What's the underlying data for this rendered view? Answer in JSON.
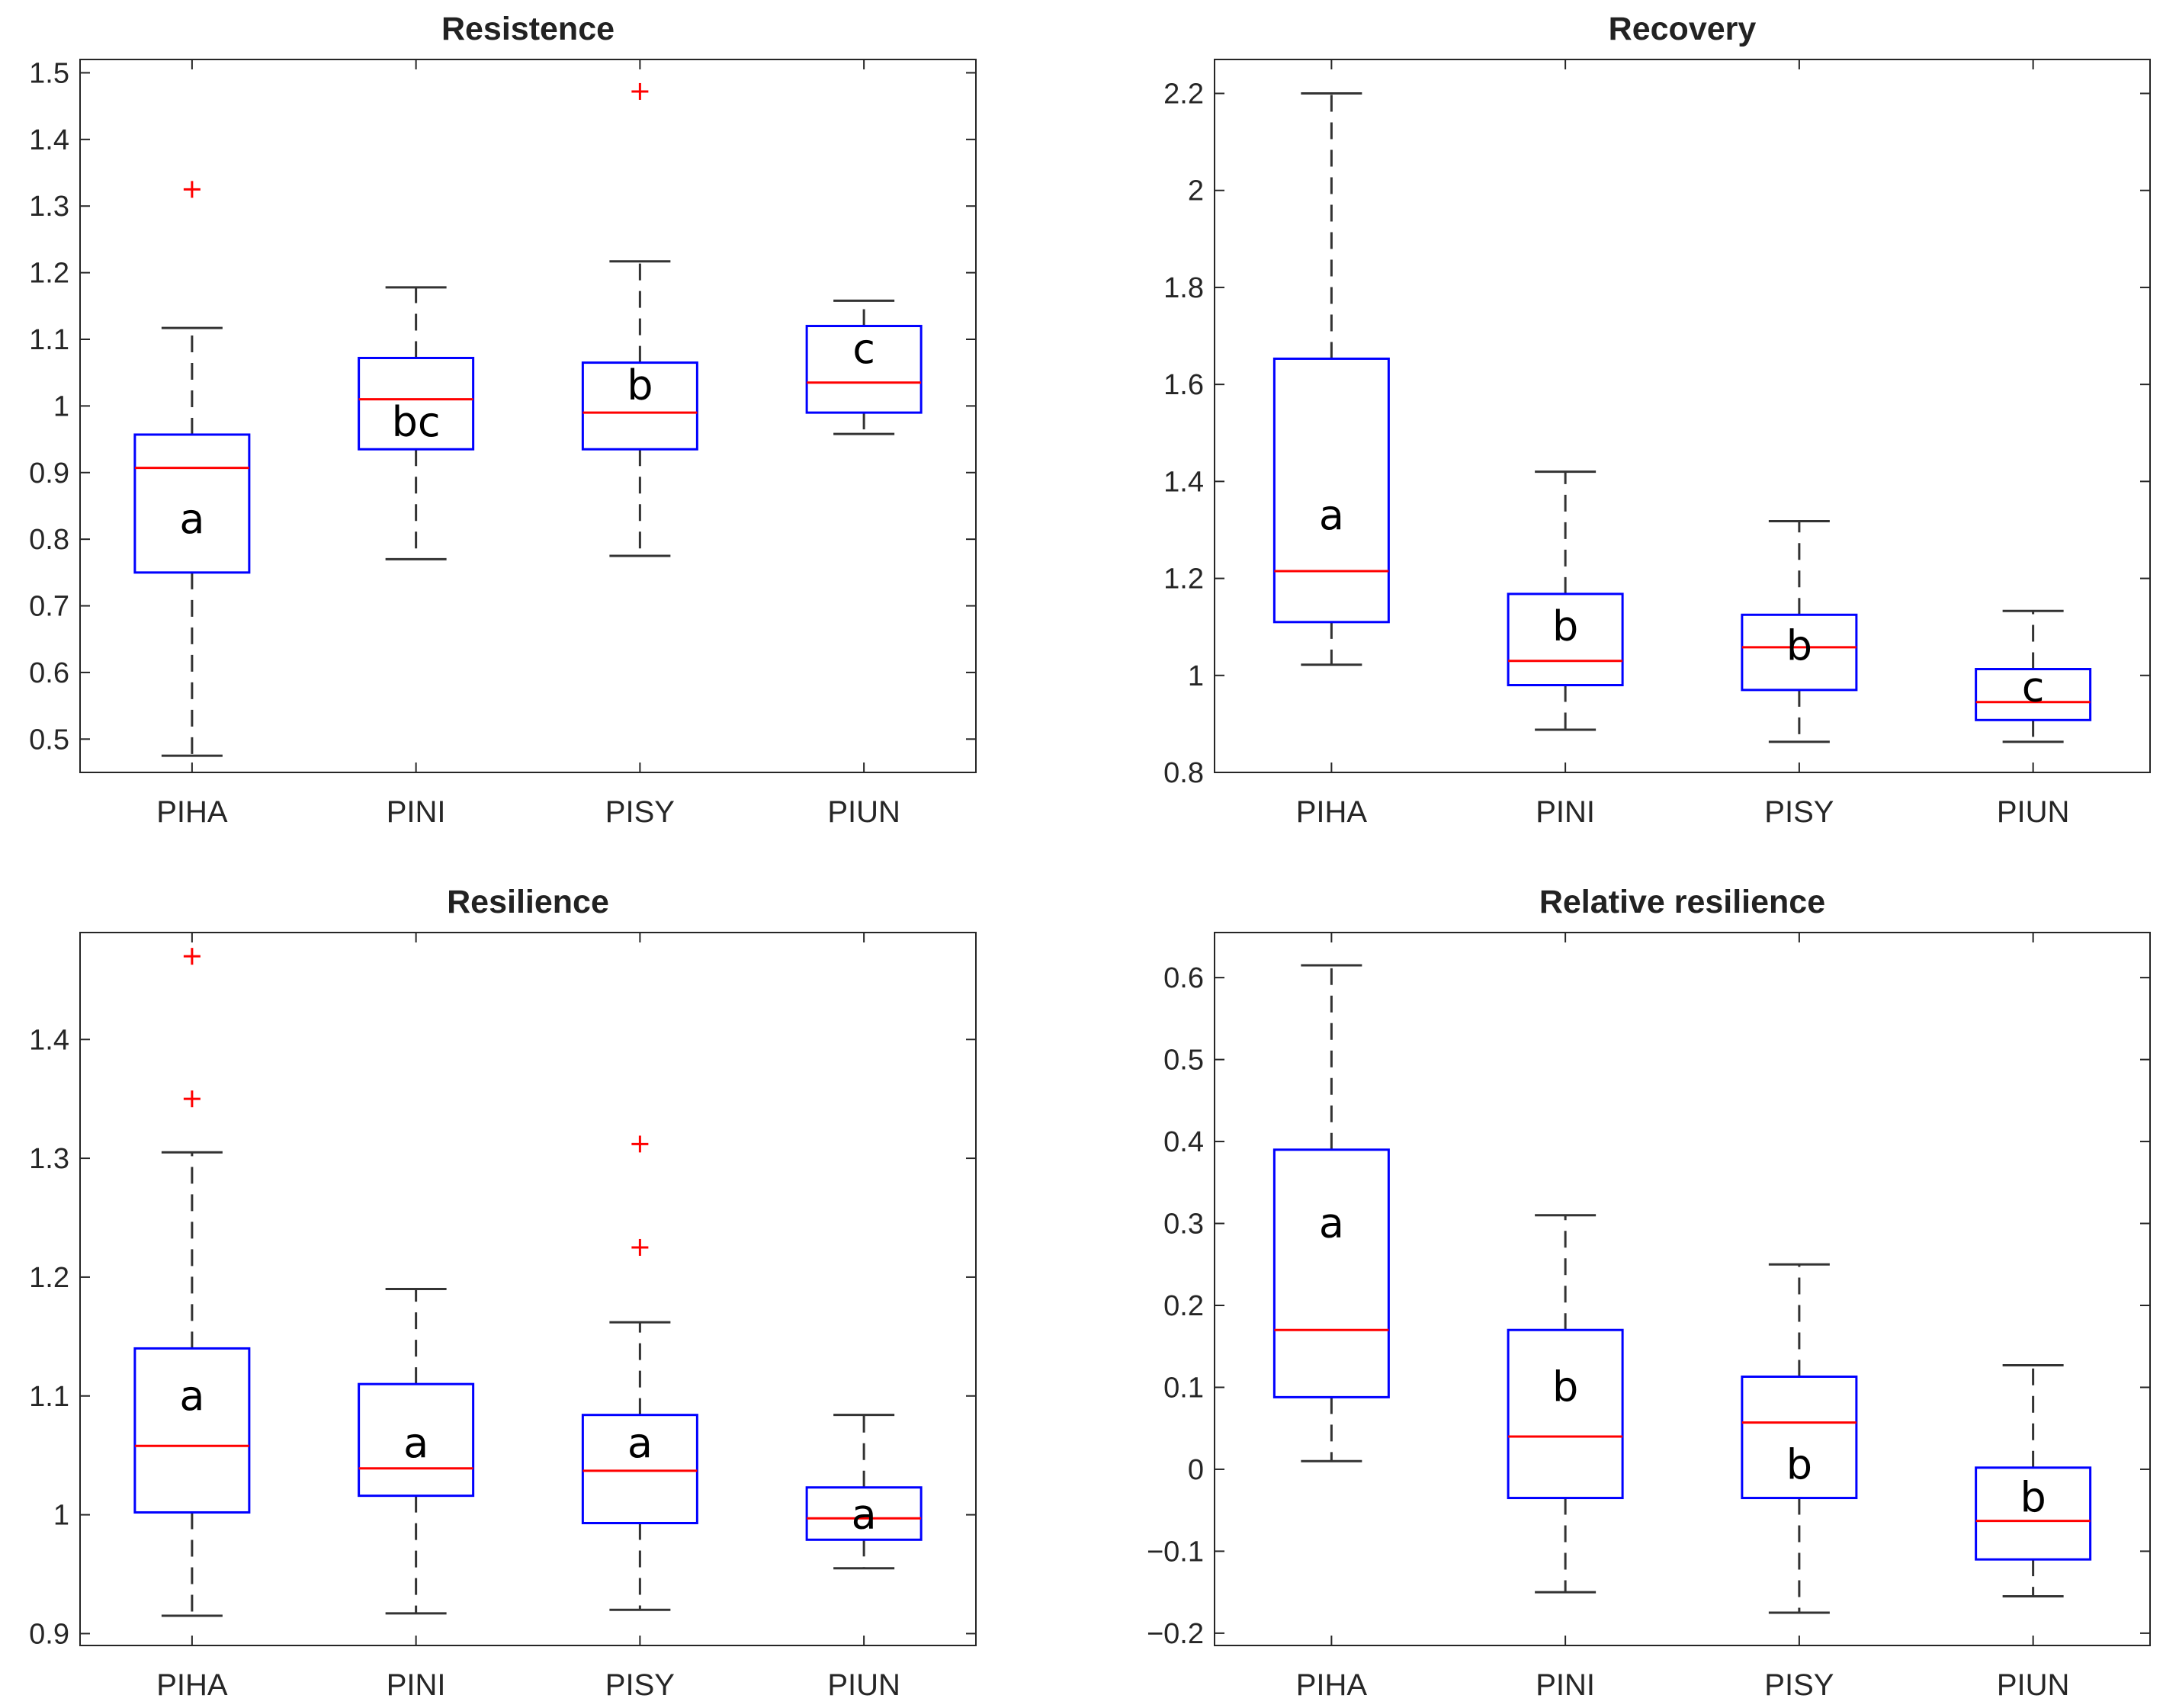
{
  "chart_data": [
    {
      "type": "box",
      "title": "Resistence",
      "categories": [
        "PIHA",
        "PINI",
        "PISY",
        "PIUN"
      ],
      "ylim": [
        0.45,
        1.52
      ],
      "yticks": [
        0.5,
        0.6,
        0.7,
        0.8,
        0.9,
        1,
        1.1,
        1.2,
        1.3,
        1.4,
        1.5
      ],
      "ytick_labels": [
        "0.5",
        "0.6",
        "0.7",
        "0.8",
        "0.9",
        "1",
        "1.1",
        "1.2",
        "1.3",
        "1.4",
        "1.5"
      ],
      "series": [
        {
          "name": "PIHA",
          "whisker_low": 0.475,
          "q1": 0.75,
          "median": 0.907,
          "q3": 0.957,
          "whisker_high": 1.117,
          "outliers": [
            1.325
          ],
          "letter": "a",
          "letter_y": 0.83
        },
        {
          "name": "PINI",
          "whisker_low": 0.77,
          "q1": 0.935,
          "median": 1.01,
          "q3": 1.072,
          "whisker_high": 1.178,
          "outliers": [],
          "letter": "bc",
          "letter_y": 0.975
        },
        {
          "name": "PISY",
          "whisker_low": 0.775,
          "q1": 0.935,
          "median": 0.99,
          "q3": 1.065,
          "whisker_high": 1.217,
          "outliers": [
            1.472
          ],
          "letter": "b",
          "letter_y": 1.03
        },
        {
          "name": "PIUN",
          "whisker_low": 0.958,
          "q1": 0.99,
          "median": 1.035,
          "q3": 1.12,
          "whisker_high": 1.158,
          "outliers": [],
          "letter": "c",
          "letter_y": 1.085
        }
      ]
    },
    {
      "type": "box",
      "title": "Recovery",
      "categories": [
        "PIHA",
        "PINI",
        "PISY",
        "PIUN"
      ],
      "ylim": [
        0.8,
        2.27
      ],
      "yticks": [
        0.8,
        1,
        1.2,
        1.4,
        1.6,
        1.8,
        2,
        2.2
      ],
      "ytick_labels": [
        "0.8",
        "1",
        "1.2",
        "1.4",
        "1.6",
        "1.8",
        "2",
        "2.2"
      ],
      "series": [
        {
          "name": "PIHA",
          "whisker_low": 1.022,
          "q1": 1.11,
          "median": 1.215,
          "q3": 1.653,
          "whisker_high": 2.2,
          "outliers": [],
          "letter": "a",
          "letter_y": 1.33
        },
        {
          "name": "PINI",
          "whisker_low": 0.888,
          "q1": 0.98,
          "median": 1.03,
          "q3": 1.168,
          "whisker_high": 1.42,
          "outliers": [],
          "letter": "b",
          "letter_y": 1.1
        },
        {
          "name": "PISY",
          "whisker_low": 0.863,
          "q1": 0.97,
          "median": 1.058,
          "q3": 1.125,
          "whisker_high": 1.318,
          "outliers": [],
          "letter": "b",
          "letter_y": 1.06
        },
        {
          "name": "PIUN",
          "whisker_low": 0.863,
          "q1": 0.908,
          "median": 0.945,
          "q3": 1.013,
          "whisker_high": 1.133,
          "outliers": [],
          "letter": "c",
          "letter_y": 0.975
        }
      ]
    },
    {
      "type": "box",
      "title": "Resilience",
      "categories": [
        "PIHA",
        "PINI",
        "PISY",
        "PIUN"
      ],
      "ylim": [
        0.89,
        1.49
      ],
      "yticks": [
        0.9,
        1,
        1.1,
        1.2,
        1.3,
        1.4
      ],
      "ytick_labels": [
        "0.9",
        "1",
        "1.1",
        "1.2",
        "1.3",
        "1.4"
      ],
      "series": [
        {
          "name": "PIHA",
          "whisker_low": 0.915,
          "q1": 1.002,
          "median": 1.058,
          "q3": 1.14,
          "whisker_high": 1.305,
          "outliers": [
            1.35,
            1.47
          ],
          "letter": "a",
          "letter_y": 1.1
        },
        {
          "name": "PINI",
          "whisker_low": 0.917,
          "q1": 1.016,
          "median": 1.039,
          "q3": 1.11,
          "whisker_high": 1.19,
          "outliers": [],
          "letter": "a",
          "letter_y": 1.06
        },
        {
          "name": "PISY",
          "whisker_low": 0.92,
          "q1": 0.993,
          "median": 1.037,
          "q3": 1.084,
          "whisker_high": 1.162,
          "outliers": [
            1.225,
            1.312
          ],
          "letter": "a",
          "letter_y": 1.06
        },
        {
          "name": "PIUN",
          "whisker_low": 0.955,
          "q1": 0.979,
          "median": 0.997,
          "q3": 1.023,
          "whisker_high": 1.084,
          "outliers": [],
          "letter": "a",
          "letter_y": 1.0
        }
      ]
    },
    {
      "type": "box",
      "title": "Relative resilience",
      "categories": [
        "PIHA",
        "PINI",
        "PISY",
        "PIUN"
      ],
      "ylim": [
        -0.215,
        0.655
      ],
      "yticks": [
        -0.2,
        -0.1,
        0,
        0.1,
        0.2,
        0.3,
        0.4,
        0.5,
        0.6
      ],
      "ytick_labels": [
        "−0.2",
        "−0.1",
        "0",
        "0.1",
        "0.2",
        "0.3",
        "0.4",
        "0.5",
        "0.6"
      ],
      "series": [
        {
          "name": "PIHA",
          "whisker_low": 0.01,
          "q1": 0.088,
          "median": 0.17,
          "q3": 0.39,
          "whisker_high": 0.615,
          "outliers": [],
          "letter": "a",
          "letter_y": 0.3
        },
        {
          "name": "PINI",
          "whisker_low": -0.15,
          "q1": -0.035,
          "median": 0.04,
          "q3": 0.17,
          "whisker_high": 0.31,
          "outliers": [],
          "letter": "b",
          "letter_y": 0.1
        },
        {
          "name": "PISY",
          "whisker_low": -0.175,
          "q1": -0.035,
          "median": 0.057,
          "q3": 0.113,
          "whisker_high": 0.25,
          "outliers": [],
          "letter": "b",
          "letter_y": 0.005
        },
        {
          "name": "PIUN",
          "whisker_low": -0.155,
          "q1": -0.11,
          "median": -0.063,
          "q3": 0.002,
          "whisker_high": 0.127,
          "outliers": [],
          "letter": "b",
          "letter_y": -0.035
        }
      ]
    }
  ],
  "colors": {
    "box": "#0000ff",
    "median": "#ff0000",
    "outlier": "#ff0000",
    "whisker": "#333333",
    "axis": "#262626"
  }
}
